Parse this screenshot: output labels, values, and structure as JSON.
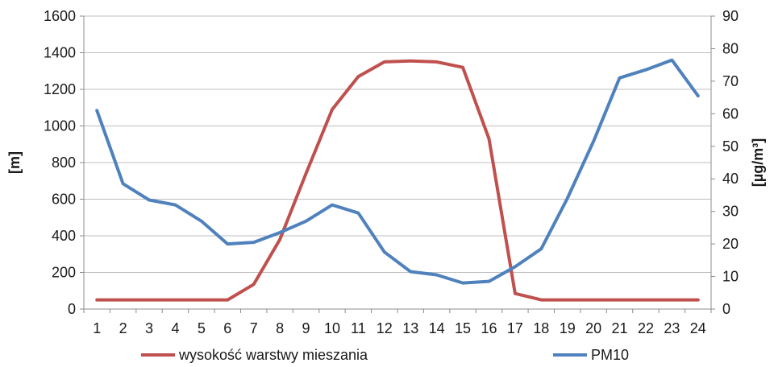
{
  "chart_data": {
    "type": "line",
    "x": [
      1,
      2,
      3,
      4,
      5,
      6,
      7,
      8,
      9,
      10,
      11,
      12,
      13,
      14,
      15,
      16,
      17,
      18,
      19,
      20,
      21,
      22,
      23,
      24
    ],
    "series": [
      {
        "name": "wysokość warstwy mieszania",
        "axis": "left",
        "color": "#c0504d",
        "values": [
          50,
          50,
          50,
          50,
          50,
          50,
          135,
          380,
          740,
          1090,
          1270,
          1350,
          1355,
          1350,
          1320,
          930,
          85,
          50,
          50,
          50,
          50,
          50,
          50,
          50
        ]
      },
      {
        "name": "PM10",
        "axis": "right",
        "color": "#4f81bd",
        "values": [
          61,
          38.5,
          33.5,
          32,
          27,
          20,
          20.5,
          23.5,
          27,
          32,
          29.5,
          17.5,
          11.5,
          10.5,
          8,
          8.5,
          13,
          18.5,
          34,
          51.5,
          71,
          73.5,
          76.5,
          65.5
        ]
      }
    ],
    "ylabel_left": "[m]",
    "ylim_left": [
      0,
      1600
    ],
    "yticks_left": [
      0,
      200,
      400,
      600,
      800,
      1000,
      1200,
      1400,
      1600
    ],
    "ylabel_right": "[µg/m³]",
    "ylim_right": [
      0,
      90
    ],
    "yticks_right": [
      0,
      10,
      20,
      30,
      40,
      50,
      60,
      70,
      80,
      90
    ],
    "grid": true,
    "legend_position": "bottom"
  }
}
